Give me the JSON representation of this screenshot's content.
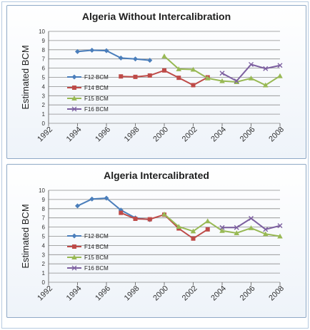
{
  "chart_data": [
    {
      "type": "line",
      "title": "Algeria Without Intercalibration",
      "ylabel": "Estimated BCM",
      "xlabel": "",
      "ylim": [
        0,
        10
      ],
      "yticks": [
        0,
        1,
        2,
        3,
        4,
        5,
        6,
        7,
        8,
        9,
        10
      ],
      "xlim": [
        1992,
        2008
      ],
      "xticks": [
        1992,
        1994,
        1996,
        1998,
        2000,
        2002,
        2004,
        2006,
        2008
      ],
      "grid": true,
      "legend_position": "left",
      "series": [
        {
          "name": "F12 BCM",
          "color": "#4a7ebb",
          "marker": "diamond",
          "x": [
            1994,
            1995,
            1996,
            1997,
            1998,
            1999
          ],
          "values": [
            7.8,
            7.95,
            7.9,
            7.1,
            7.0,
            6.85
          ]
        },
        {
          "name": "F14 BCM",
          "color": "#be4b48",
          "marker": "square",
          "x": [
            1997,
            1998,
            1999,
            2000,
            2001,
            2002,
            2003
          ],
          "values": [
            5.1,
            5.05,
            5.2,
            5.75,
            4.95,
            4.15,
            5.0
          ]
        },
        {
          "name": "F15 BCM",
          "color": "#98b954",
          "marker": "triangle",
          "x": [
            2000,
            2001,
            2002,
            2003,
            2004,
            2005,
            2006,
            2007,
            2008
          ],
          "values": [
            7.3,
            5.9,
            5.85,
            4.9,
            4.6,
            4.5,
            4.9,
            4.15,
            5.15
          ]
        },
        {
          "name": "F16 BCM",
          "color": "#7d60a0",
          "marker": "x",
          "x": [
            2004,
            2005,
            2006,
            2007,
            2008
          ],
          "values": [
            5.45,
            4.6,
            6.4,
            5.95,
            6.3
          ]
        }
      ]
    },
    {
      "type": "line",
      "title": "Algeria Intercalibrated",
      "ylabel": "Estimated BCM",
      "xlabel": "",
      "ylim": [
        0,
        10
      ],
      "yticks": [
        0,
        1,
        2,
        3,
        4,
        5,
        6,
        7,
        8,
        9,
        10
      ],
      "xlim": [
        1992,
        2008
      ],
      "xticks": [
        1992,
        1994,
        1996,
        1998,
        2000,
        2002,
        2004,
        2006,
        2008
      ],
      "grid": true,
      "legend_position": "left",
      "series": [
        {
          "name": "F12 BCM",
          "color": "#4a7ebb",
          "marker": "diamond",
          "x": [
            1994,
            1995,
            1996,
            1997,
            1998,
            1999
          ],
          "values": [
            8.3,
            9.05,
            9.15,
            7.85,
            7.0,
            6.8
          ]
        },
        {
          "name": "F14 BCM",
          "color": "#be4b48",
          "marker": "square",
          "x": [
            1997,
            1998,
            1999,
            2000,
            2001,
            2002,
            2003
          ],
          "values": [
            7.55,
            6.9,
            6.85,
            7.35,
            5.85,
            4.75,
            5.75
          ]
        },
        {
          "name": "F15 BCM",
          "color": "#98b954",
          "marker": "triangle",
          "x": [
            2000,
            2001,
            2002,
            2003,
            2004,
            2005,
            2006,
            2007,
            2008
          ],
          "values": [
            7.4,
            6.05,
            5.55,
            6.65,
            5.6,
            5.35,
            5.9,
            5.25,
            5.0
          ]
        },
        {
          "name": "F16 BCM",
          "color": "#7d60a0",
          "marker": "x",
          "x": [
            2004,
            2005,
            2006,
            2007,
            2008
          ],
          "values": [
            5.95,
            5.95,
            6.95,
            5.75,
            6.15
          ]
        }
      ]
    }
  ]
}
